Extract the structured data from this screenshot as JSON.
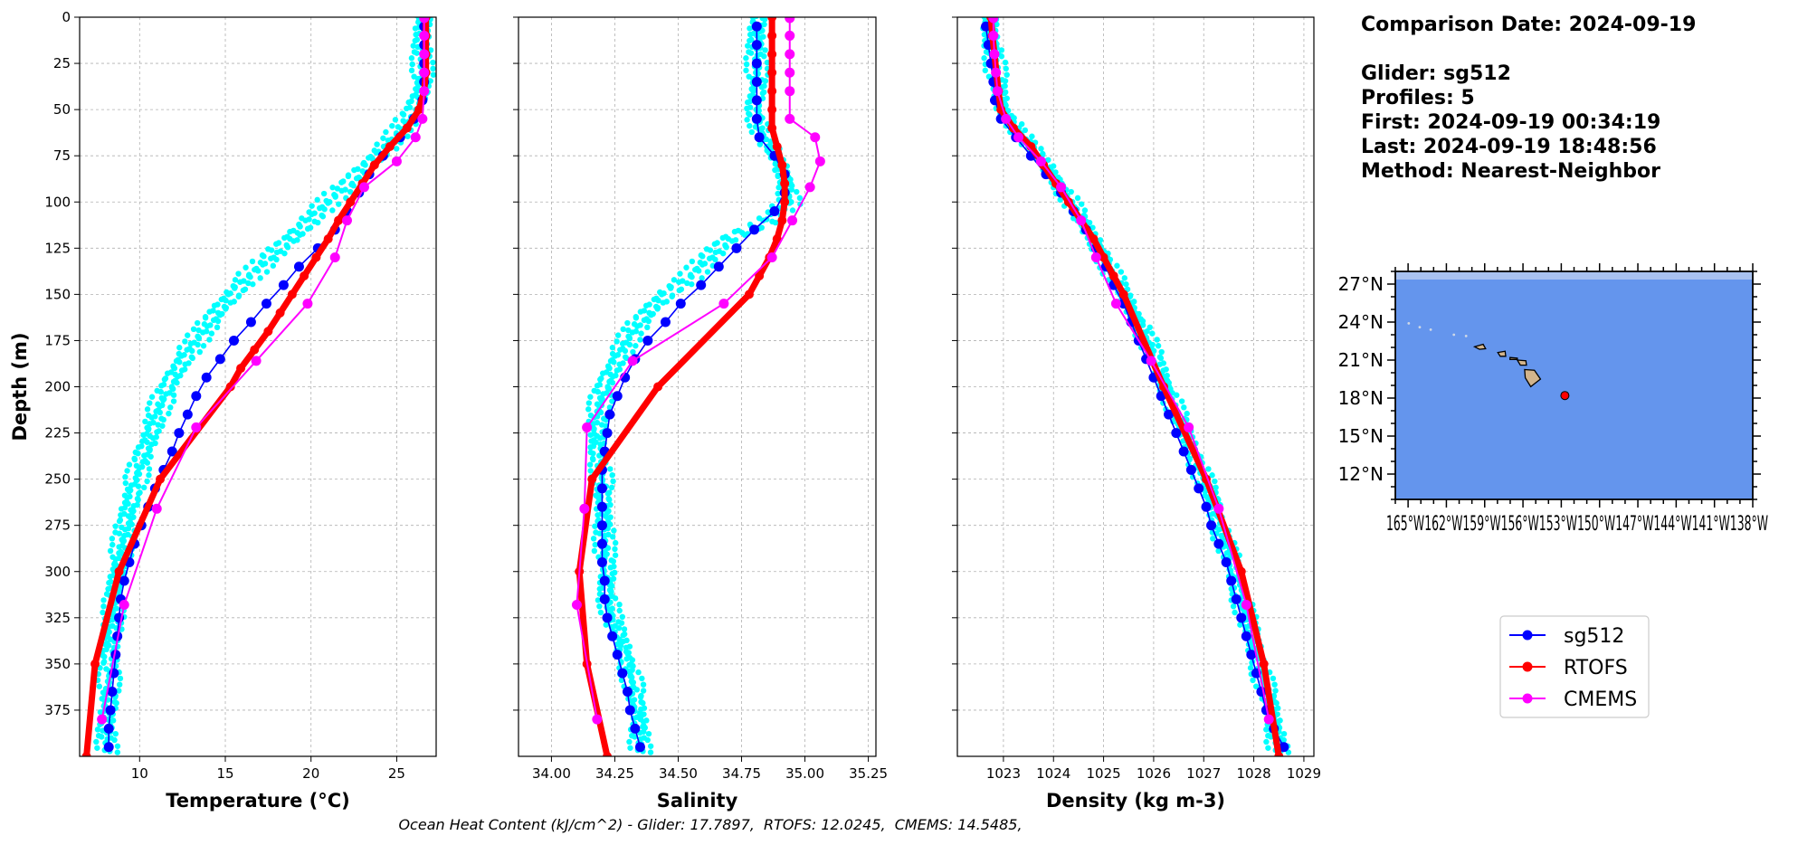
{
  "chart_data": [
    {
      "type": "line",
      "panel": "temperature",
      "xlabel": "Temperature ($^{o}C$)",
      "xlabel_display": "Temperature (°C)",
      "ylabel": "Depth (m)",
      "xlim": [
        6.5,
        27.3
      ],
      "ylim": [
        400,
        0
      ],
      "x_ticks": [
        "10",
        "15",
        "20",
        "25"
      ],
      "y_ticks": [
        "0",
        "25",
        "50",
        "75",
        "100",
        "125",
        "150",
        "175",
        "200",
        "225",
        "250",
        "275",
        "300",
        "325",
        "350",
        "375"
      ],
      "grid": true,
      "series": [
        {
          "name": "sg512 profiles (scatter)",
          "depth": [
            0,
            10,
            20,
            30,
            40,
            50,
            60,
            70,
            80,
            90,
            100,
            110,
            120,
            130,
            140,
            150,
            160,
            170,
            180,
            190,
            200,
            210,
            220,
            230,
            240,
            250,
            260,
            270,
            280,
            290,
            300,
            310,
            320,
            330,
            340,
            350,
            360,
            370,
            380,
            390,
            400
          ],
          "x": [
            26.5,
            26.5,
            26.5,
            26.5,
            26.4,
            26.0,
            25.3,
            24.4,
            23.3,
            22.2,
            21.0,
            19.9,
            18.8,
            17.6,
            16.4,
            15.4,
            14.5,
            13.7,
            12.9,
            12.2,
            11.7,
            11.2,
            10.8,
            10.5,
            10.1,
            9.8,
            9.5,
            9.3,
            9.1,
            8.9,
            8.7,
            8.6,
            8.5,
            8.4,
            8.3,
            8.3,
            8.2,
            8.2,
            8.1,
            8.1,
            8.1
          ]
        },
        {
          "name": "sg512",
          "depth": [
            5,
            15,
            25,
            35,
            45,
            55,
            65,
            75,
            85,
            95,
            105,
            115,
            125,
            135,
            145,
            155,
            165,
            175,
            185,
            195,
            205,
            215,
            225,
            235,
            245,
            255,
            265,
            275,
            285,
            295,
            305,
            315,
            325,
            335,
            345,
            355,
            365,
            375,
            385,
            395
          ],
          "x": [
            26.6,
            26.6,
            26.6,
            26.6,
            26.5,
            26.0,
            25.2,
            24.2,
            23.4,
            22.8,
            22.1,
            21.4,
            20.4,
            19.3,
            18.4,
            17.4,
            16.5,
            15.5,
            14.7,
            13.9,
            13.3,
            12.8,
            12.3,
            11.9,
            11.4,
            10.9,
            10.5,
            10.1,
            9.7,
            9.4,
            9.1,
            8.9,
            8.8,
            8.7,
            8.6,
            8.5,
            8.4,
            8.3,
            8.2,
            8.2
          ]
        },
        {
          "name": "RTOFS",
          "depth": [
            0,
            10,
            20,
            30,
            40,
            50,
            60,
            70,
            80,
            90,
            100,
            110,
            120,
            130,
            140,
            150,
            160,
            170,
            180,
            190,
            200,
            250,
            300,
            350,
            400
          ],
          "x": [
            26.7,
            26.7,
            26.7,
            26.7,
            26.6,
            26.3,
            25.6,
            24.6,
            23.7,
            23.0,
            22.3,
            21.6,
            21.0,
            20.3,
            19.6,
            18.9,
            18.2,
            17.5,
            16.7,
            15.9,
            15.3,
            11.2,
            8.8,
            7.4,
            6.9
          ]
        },
        {
          "name": "CMEMS",
          "depth": [
            0.5,
            10,
            20,
            30,
            40,
            55,
            65,
            78,
            92,
            110,
            130,
            155,
            186,
            222,
            266,
            318,
            380
          ],
          "x": [
            26.6,
            26.6,
            26.6,
            26.6,
            26.6,
            26.5,
            26.1,
            25.0,
            23.1,
            22.1,
            21.4,
            19.8,
            16.8,
            13.3,
            11.0,
            9.1,
            7.8
          ]
        }
      ]
    },
    {
      "type": "line",
      "panel": "salinity",
      "xlabel": "Salinity",
      "xlim": [
        33.87,
        35.28
      ],
      "ylim": [
        400,
        0
      ],
      "x_ticks": [
        "34.00",
        "34.25",
        "34.50",
        "34.75",
        "35.00",
        "35.25"
      ],
      "grid": true,
      "series": [
        {
          "name": "sg512 profiles (scatter)",
          "depth": [
            0,
            10,
            20,
            30,
            40,
            50,
            60,
            70,
            80,
            90,
            100,
            110,
            120,
            130,
            140,
            150,
            160,
            170,
            180,
            190,
            200,
            210,
            220,
            230,
            240,
            250,
            260,
            270,
            280,
            290,
            300,
            310,
            320,
            330,
            340,
            350,
            360,
            370,
            380,
            390,
            400
          ],
          "x": [
            34.81,
            34.81,
            34.81,
            34.81,
            34.81,
            34.8,
            34.82,
            34.86,
            34.9,
            34.93,
            34.94,
            34.85,
            34.7,
            34.62,
            34.55,
            34.45,
            34.38,
            34.32,
            34.28,
            34.24,
            34.21,
            34.19,
            34.18,
            34.18,
            34.19,
            34.2,
            34.2,
            34.21,
            34.21,
            34.21,
            34.22,
            34.22,
            34.23,
            34.25,
            34.28,
            34.3,
            34.32,
            34.33,
            34.35,
            34.35,
            34.35
          ]
        },
        {
          "name": "sg512",
          "depth": [
            5,
            15,
            25,
            35,
            45,
            55,
            65,
            75,
            85,
            95,
            105,
            115,
            125,
            135,
            145,
            155,
            165,
            175,
            185,
            195,
            205,
            215,
            225,
            235,
            245,
            255,
            265,
            275,
            285,
            295,
            305,
            315,
            325,
            335,
            345,
            355,
            365,
            375,
            385,
            395
          ],
          "x": [
            34.81,
            34.81,
            34.81,
            34.81,
            34.81,
            34.81,
            34.82,
            34.88,
            34.92,
            34.92,
            34.88,
            34.8,
            34.73,
            34.66,
            34.59,
            34.51,
            34.45,
            34.38,
            34.33,
            34.29,
            34.26,
            34.23,
            34.22,
            34.21,
            34.2,
            34.2,
            34.2,
            34.2,
            34.2,
            34.2,
            34.21,
            34.21,
            34.22,
            34.24,
            34.26,
            34.28,
            34.3,
            34.31,
            34.33,
            34.35
          ]
        },
        {
          "name": "RTOFS",
          "depth": [
            0,
            10,
            20,
            30,
            40,
            50,
            60,
            70,
            80,
            90,
            100,
            110,
            120,
            130,
            140,
            150,
            200,
            250,
            300,
            350,
            400
          ],
          "x": [
            34.87,
            34.87,
            34.87,
            34.87,
            34.87,
            34.87,
            34.87,
            34.89,
            34.91,
            34.92,
            34.92,
            34.91,
            34.89,
            34.86,
            34.82,
            34.78,
            34.42,
            34.16,
            34.11,
            34.14,
            34.22
          ]
        },
        {
          "name": "CMEMS",
          "depth": [
            0.5,
            10,
            20,
            30,
            40,
            55,
            65,
            78,
            92,
            110,
            130,
            155,
            186,
            222,
            266,
            318,
            380
          ],
          "x": [
            34.94,
            34.94,
            34.94,
            34.94,
            34.94,
            34.94,
            35.04,
            35.06,
            35.02,
            34.95,
            34.87,
            34.68,
            34.32,
            34.14,
            34.13,
            34.1,
            34.18
          ]
        }
      ]
    },
    {
      "type": "line",
      "panel": "density",
      "xlabel": "Density (kg m-3)",
      "xlim": [
        1022.08,
        1029.2
      ],
      "ylim": [
        400,
        0
      ],
      "x_ticks": [
        "1023",
        "1024",
        "1025",
        "1026",
        "1027",
        "1028",
        "1029"
      ],
      "grid": true,
      "series": [
        {
          "name": "sg512 profiles (scatter)",
          "depth": [
            0,
            10,
            20,
            30,
            40,
            50,
            60,
            70,
            80,
            90,
            100,
            110,
            120,
            130,
            140,
            150,
            160,
            170,
            180,
            190,
            200,
            210,
            220,
            230,
            240,
            250,
            260,
            270,
            280,
            290,
            300,
            310,
            320,
            330,
            340,
            350,
            360,
            370,
            380,
            390,
            400
          ],
          "x": [
            1022.7,
            1022.75,
            1022.82,
            1022.85,
            1022.9,
            1023.0,
            1023.25,
            1023.55,
            1023.85,
            1024.1,
            1024.35,
            1024.55,
            1024.8,
            1025.0,
            1025.2,
            1025.4,
            1025.6,
            1025.8,
            1025.95,
            1026.1,
            1026.25,
            1026.4,
            1026.55,
            1026.7,
            1026.85,
            1027.0,
            1027.15,
            1027.25,
            1027.35,
            1027.5,
            1027.6,
            1027.7,
            1027.8,
            1027.9,
            1028.0,
            1028.1,
            1028.2,
            1028.3,
            1028.4,
            1028.45,
            1028.5
          ]
        },
        {
          "name": "sg512",
          "depth": [
            5,
            15,
            25,
            35,
            45,
            55,
            65,
            75,
            85,
            95,
            105,
            115,
            125,
            135,
            145,
            155,
            165,
            175,
            185,
            195,
            205,
            215,
            225,
            235,
            245,
            255,
            265,
            275,
            285,
            295,
            305,
            315,
            325,
            335,
            345,
            355,
            365,
            375,
            385,
            395
          ],
          "x": [
            1022.65,
            1022.7,
            1022.75,
            1022.8,
            1022.83,
            1022.95,
            1023.25,
            1023.55,
            1023.85,
            1024.15,
            1024.4,
            1024.65,
            1024.85,
            1025.05,
            1025.2,
            1025.4,
            1025.55,
            1025.7,
            1025.85,
            1026.0,
            1026.15,
            1026.3,
            1026.45,
            1026.6,
            1026.75,
            1026.9,
            1027.05,
            1027.15,
            1027.3,
            1027.45,
            1027.55,
            1027.65,
            1027.75,
            1027.85,
            1027.95,
            1028.05,
            1028.15,
            1028.25,
            1028.4,
            1028.6
          ]
        },
        {
          "name": "RTOFS",
          "depth": [
            0,
            10,
            20,
            30,
            40,
            50,
            60,
            70,
            80,
            90,
            100,
            110,
            120,
            130,
            140,
            150,
            200,
            250,
            300,
            350,
            400
          ],
          "x": [
            1022.75,
            1022.78,
            1022.82,
            1022.86,
            1022.9,
            1022.95,
            1023.2,
            1023.55,
            1023.8,
            1024.05,
            1024.3,
            1024.55,
            1024.8,
            1025.0,
            1025.2,
            1025.4,
            1026.2,
            1027.05,
            1027.75,
            1028.2,
            1028.5
          ]
        },
        {
          "name": "CMEMS",
          "depth": [
            0.5,
            10,
            20,
            30,
            40,
            55,
            65,
            78,
            92,
            110,
            130,
            155,
            186,
            222,
            266,
            318,
            380
          ],
          "x": [
            1022.8,
            1022.8,
            1022.82,
            1022.85,
            1022.88,
            1023.05,
            1023.3,
            1023.75,
            1024.15,
            1024.55,
            1024.85,
            1025.25,
            1025.95,
            1026.7,
            1027.3,
            1027.85,
            1028.3
          ]
        }
      ]
    }
  ],
  "info": {
    "comparison_date": "Comparison Date: 2024-09-19",
    "glider": "Glider: sg512",
    "profiles": "Profiles: 5",
    "first": "First: 2024-09-19 00:34:19",
    "last": "Last: 2024-09-19 18:48:56",
    "method": "Method: Nearest-Neighbor"
  },
  "map": {
    "lat_ticks": [
      "27°N",
      "24°N",
      "21°N",
      "18°N",
      "15°N",
      "12°N"
    ],
    "lon_ticks_text": "165°W162°W159°W156°W153°W150°W147°W144°W141°W138°W",
    "glider_position": {
      "lon": -152.8,
      "lat": 18.2
    },
    "ocean_color": "#6495ed",
    "land_color": "#d2b48c",
    "marker_color": "#ff0000"
  },
  "legend": {
    "items": [
      {
        "label": "sg512",
        "color": "#0000ff"
      },
      {
        "label": "RTOFS",
        "color": "#ff0000"
      },
      {
        "label": "CMEMS",
        "color": "#ff00ff"
      }
    ]
  },
  "footer": "Ocean Heat Content (kJ/cm^2) - Glider: 17.7897,  RTOFS: 12.0245,  CMEMS: 14.5485,",
  "colors": {
    "glider_scatter": "#00ffff",
    "glider_line": "#0000ff",
    "rtofs": "#ff0000",
    "cmems": "#ff00ff",
    "grid": "#b0b0b0"
  }
}
